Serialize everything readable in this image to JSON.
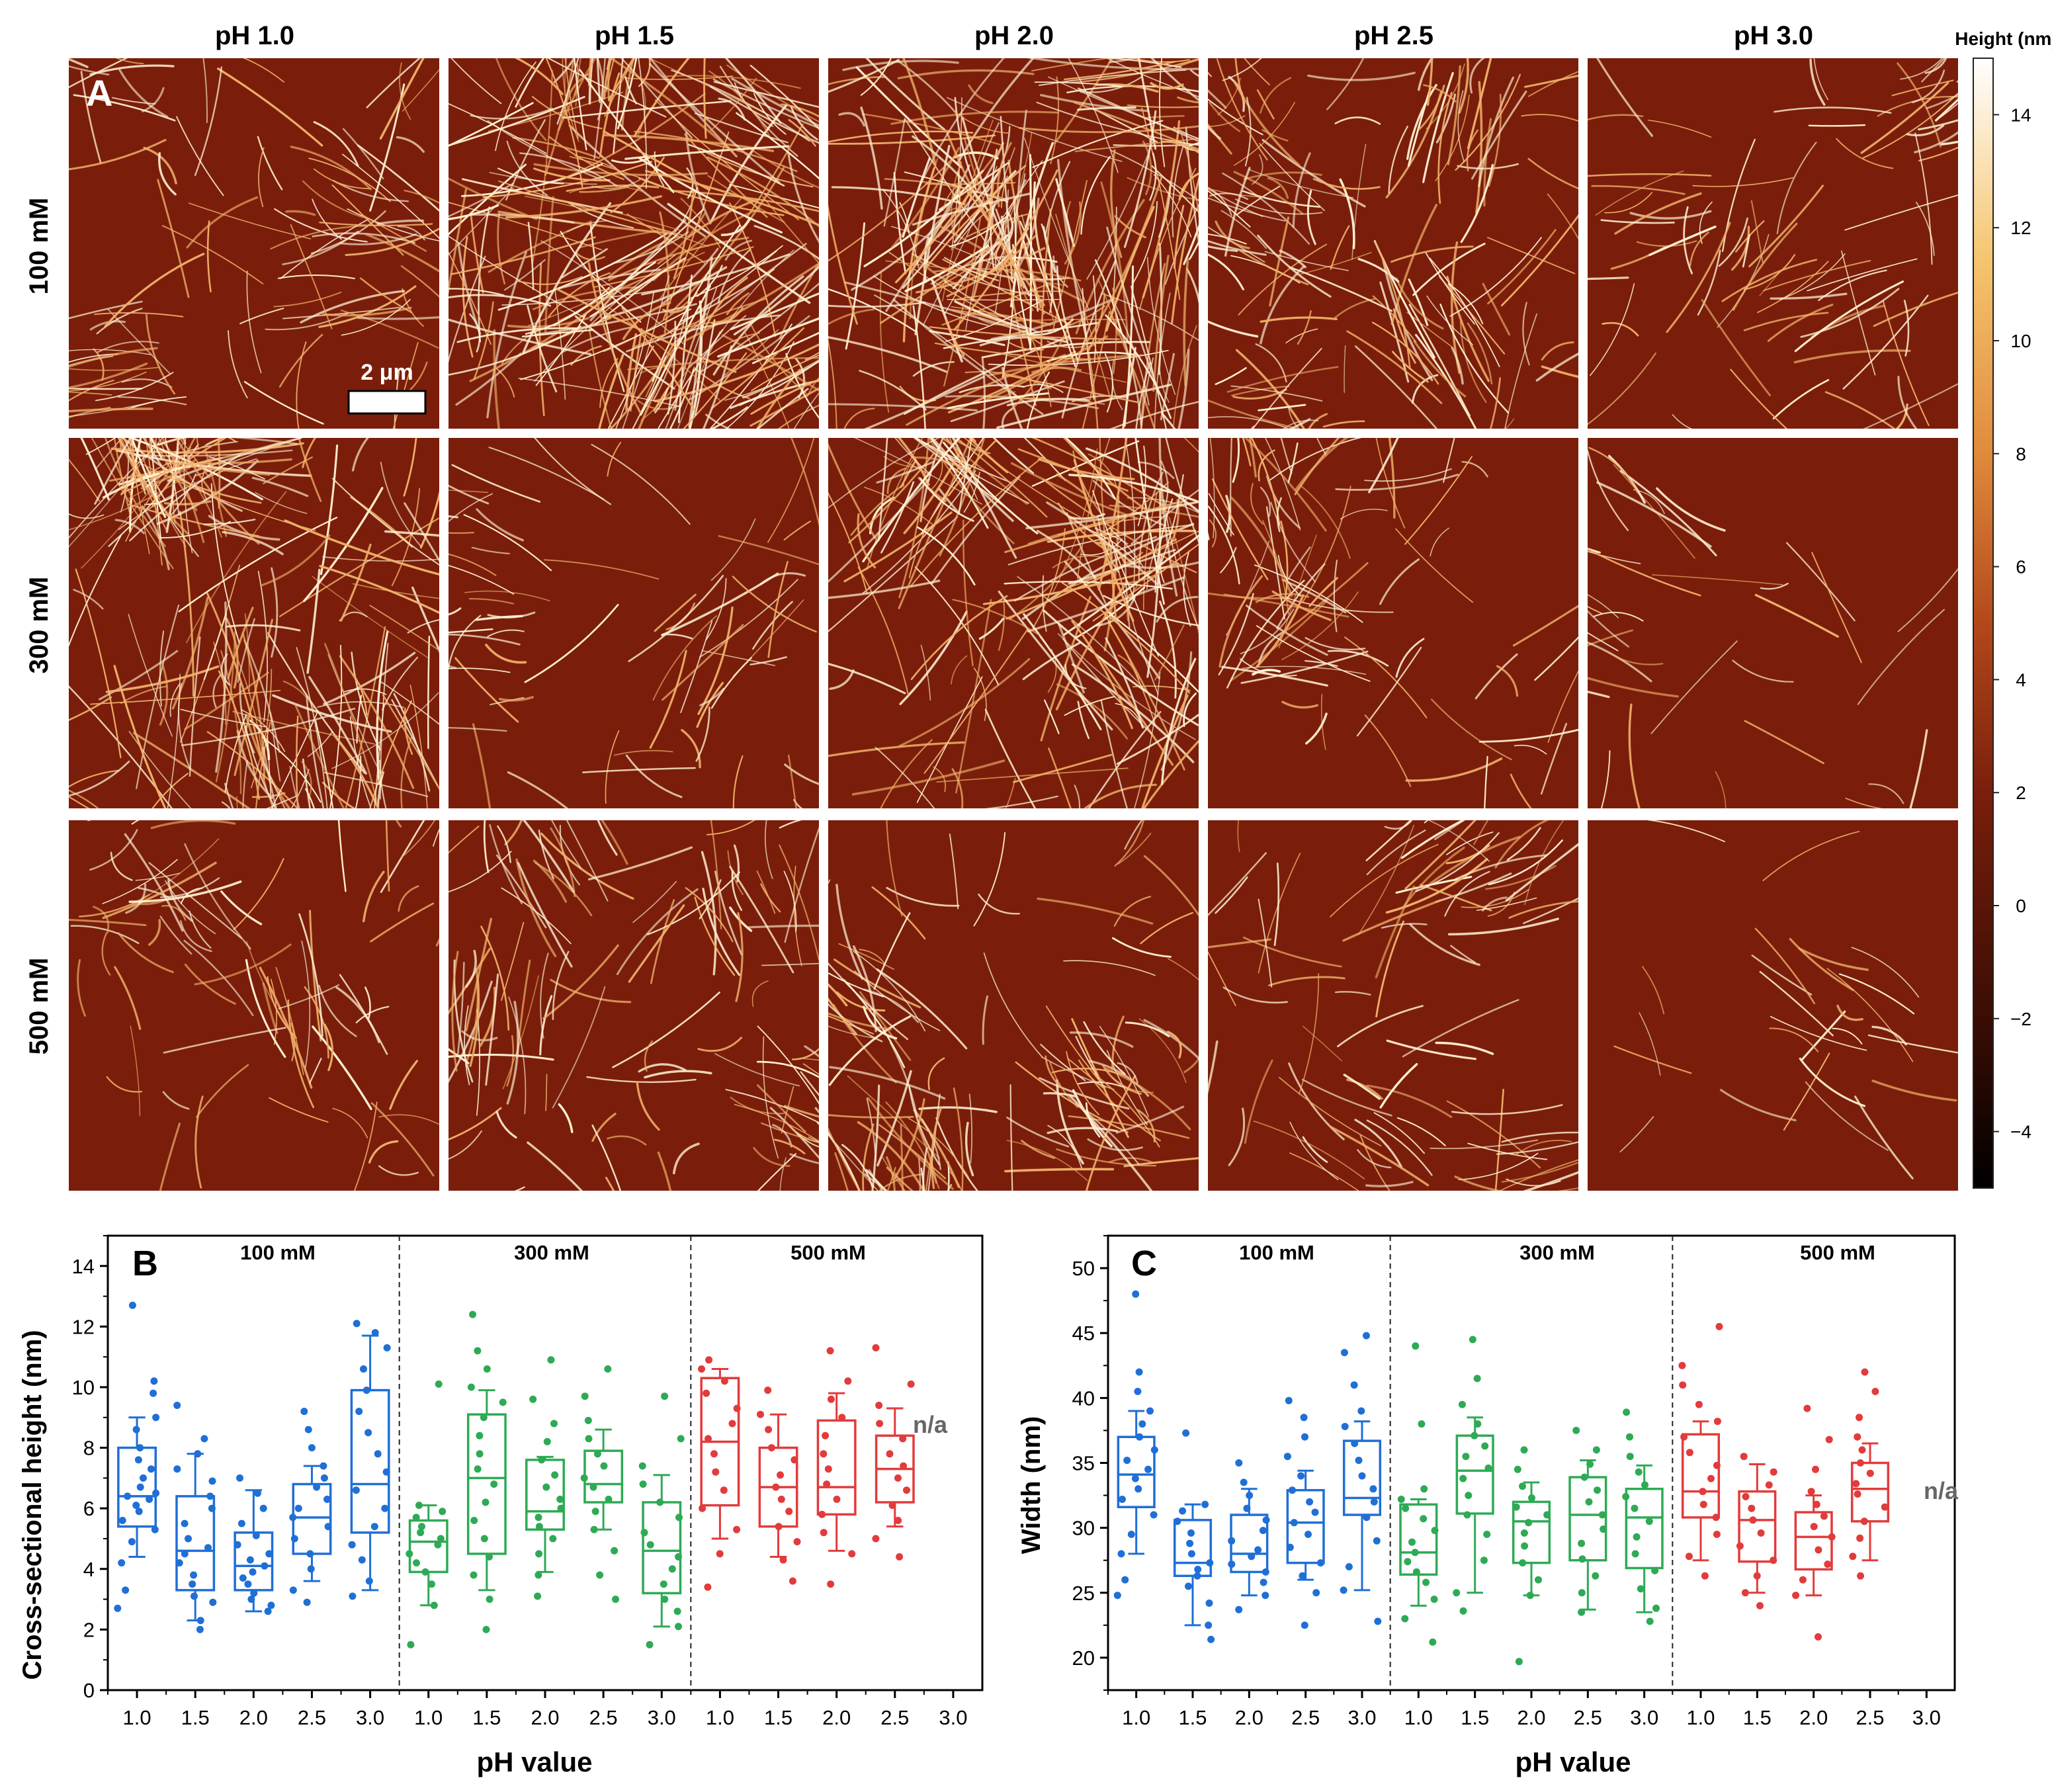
{
  "panel_a": {
    "label": "A",
    "columns": [
      "pH 1.0",
      "pH 1.5",
      "pH 2.0",
      "pH 2.5",
      "pH 3.0"
    ],
    "rows": [
      "100 mM",
      "300 mM",
      "500 mM"
    ],
    "scale_bar": "2 μm",
    "colorbar": {
      "title": "Height (nm)",
      "ticks": [
        "14",
        "12",
        "10",
        "8",
        "6",
        "4",
        "2",
        "0",
        "−2",
        "−4"
      ],
      "tick_values": [
        14,
        12,
        10,
        8,
        6,
        4,
        2,
        0,
        -2,
        -4
      ],
      "range": [
        -5,
        15
      ]
    },
    "fibril_density": [
      [
        0.35,
        1.0,
        1.0,
        0.55,
        0.25
      ],
      [
        0.8,
        0.2,
        0.7,
        0.3,
        0.1
      ],
      [
        0.25,
        0.4,
        0.45,
        0.3,
        0.05
      ]
    ],
    "colors": {
      "background": "#7a1e0b",
      "fibril": "#fff1d2",
      "fibril_mid": "#f0b06a"
    }
  },
  "chart_data": [
    {
      "type": "box",
      "panel": "B",
      "title": "",
      "xlabel": "pH value",
      "ylabel": "Cross-sectional height (nm)",
      "ylim": [
        0,
        15
      ],
      "yticks": [
        "0",
        "2",
        "4",
        "6",
        "8",
        "10",
        "12",
        "14"
      ],
      "categories": [
        "1.0",
        "1.5",
        "2.0",
        "2.5",
        "3.0"
      ],
      "groups": [
        "100 mM",
        "300 mM",
        "500 mM"
      ],
      "series": [
        {
          "name": "100 mM",
          "color": "#1f6fd6",
          "boxes": [
            {
              "q1": 5.4,
              "median": 6.4,
              "q3": 8.0,
              "whisker_low": 4.4,
              "whisker_high": 9.0,
              "points": [
                2.7,
                3.3,
                4.2,
                4.9,
                5.3,
                5.6,
                5.9,
                6.1,
                6.3,
                6.4,
                6.5,
                6.7,
                7.0,
                7.3,
                7.6,
                8.0,
                8.6,
                9.0,
                9.8,
                10.2,
                12.7
              ]
            },
            {
              "q1": 3.3,
              "median": 4.6,
              "q3": 6.4,
              "whisker_low": 2.3,
              "whisker_high": 7.8,
              "points": [
                2.0,
                2.3,
                2.9,
                3.1,
                3.5,
                3.8,
                4.2,
                4.5,
                4.7,
                5.0,
                5.5,
                6.0,
                6.4,
                6.9,
                7.3,
                7.8,
                8.3,
                9.4
              ]
            },
            {
              "q1": 3.3,
              "median": 4.1,
              "q3": 5.2,
              "whisker_low": 2.6,
              "whisker_high": 6.6,
              "points": [
                2.6,
                2.8,
                3.0,
                3.2,
                3.5,
                3.7,
                3.9,
                4.1,
                4.3,
                4.5,
                4.8,
                5.1,
                5.5,
                6.0,
                6.5,
                7.0
              ]
            },
            {
              "q1": 4.5,
              "median": 5.7,
              "q3": 6.8,
              "whisker_low": 3.6,
              "whisker_high": 7.4,
              "points": [
                2.9,
                3.3,
                4.0,
                4.5,
                5.0,
                5.4,
                5.7,
                6.0,
                6.3,
                6.7,
                7.0,
                7.4,
                8.0,
                8.6,
                9.2
              ]
            },
            {
              "q1": 5.2,
              "median": 6.8,
              "q3": 9.9,
              "whisker_low": 3.3,
              "whisker_high": 11.7,
              "points": [
                3.1,
                3.6,
                4.3,
                4.8,
                5.4,
                6.0,
                6.6,
                7.2,
                7.8,
                8.5,
                9.2,
                9.9,
                10.6,
                11.3,
                11.8,
                12.1
              ]
            }
          ]
        },
        {
          "name": "300 mM",
          "color": "#2eaa55",
          "boxes": [
            {
              "q1": 3.9,
              "median": 4.9,
              "q3": 5.6,
              "whisker_low": 2.8,
              "whisker_high": 6.1,
              "points": [
                1.5,
                2.8,
                3.5,
                3.9,
                4.2,
                4.5,
                4.8,
                5.0,
                5.2,
                5.4,
                5.7,
                5.9,
                6.1,
                10.1
              ]
            },
            {
              "q1": 4.5,
              "median": 7.0,
              "q3": 9.1,
              "whisker_low": 3.3,
              "whisker_high": 9.9,
              "points": [
                2.0,
                3.0,
                3.8,
                4.4,
                5.0,
                5.6,
                6.2,
                6.8,
                7.3,
                7.8,
                8.4,
                9.0,
                9.5,
                10.0,
                10.6,
                11.2,
                12.4
              ]
            },
            {
              "q1": 5.3,
              "median": 5.9,
              "q3": 7.6,
              "whisker_low": 3.9,
              "whisker_high": 7.7,
              "points": [
                3.1,
                3.8,
                4.5,
                5.0,
                5.4,
                5.7,
                6.0,
                6.3,
                6.7,
                7.1,
                7.6,
                8.2,
                8.8,
                9.6,
                10.9
              ]
            },
            {
              "q1": 6.2,
              "median": 6.8,
              "q3": 7.9,
              "whisker_low": 5.3,
              "whisker_high": 8.6,
              "points": [
                3.0,
                3.8,
                4.6,
                5.3,
                5.9,
                6.3,
                6.7,
                7.0,
                7.4,
                7.8,
                8.3,
                8.9,
                9.7,
                10.6
              ]
            },
            {
              "q1": 3.2,
              "median": 4.6,
              "q3": 6.2,
              "whisker_low": 2.1,
              "whisker_high": 7.1,
              "points": [
                1.5,
                2.1,
                2.6,
                3.0,
                3.5,
                4.0,
                4.4,
                4.8,
                5.2,
                5.7,
                6.2,
                6.8,
                7.4,
                8.3,
                9.7
              ]
            }
          ]
        },
        {
          "name": "500 mM",
          "color": "#e23b3b",
          "boxes": [
            {
              "q1": 6.1,
              "median": 8.2,
              "q3": 10.3,
              "whisker_low": 5.0,
              "whisker_high": 10.6,
              "points": [
                3.4,
                4.5,
                5.3,
                6.0,
                6.6,
                7.2,
                7.8,
                8.3,
                8.8,
                9.3,
                9.8,
                10.2,
                10.6,
                10.9
              ]
            },
            {
              "q1": 5.4,
              "median": 6.7,
              "q3": 8.0,
              "whisker_low": 4.4,
              "whisker_high": 9.1,
              "points": [
                3.6,
                4.3,
                4.9,
                5.4,
                5.9,
                6.3,
                6.7,
                7.1,
                7.6,
                8.0,
                8.6,
                9.1,
                9.9
              ]
            },
            {
              "q1": 5.8,
              "median": 6.7,
              "q3": 8.9,
              "whisker_low": 4.6,
              "whisker_high": 9.8,
              "points": [
                3.5,
                4.5,
                5.2,
                5.8,
                6.3,
                6.8,
                7.3,
                7.8,
                8.4,
                9.0,
                9.6,
                10.2,
                11.2
              ]
            },
            {
              "q1": 6.2,
              "median": 7.3,
              "q3": 8.4,
              "whisker_low": 5.4,
              "whisker_high": 9.3,
              "points": [
                4.4,
                5.0,
                5.6,
                6.1,
                6.6,
                7.0,
                7.4,
                7.8,
                8.3,
                8.8,
                9.4,
                10.1,
                11.3
              ]
            },
            null
          ]
        }
      ],
      "na_label": "n/a"
    },
    {
      "type": "box",
      "panel": "C",
      "title": "",
      "xlabel": "pH value",
      "ylabel": "Width (nm)",
      "ylim": [
        17.5,
        52.5
      ],
      "yticks": [
        "20",
        "25",
        "30",
        "35",
        "40",
        "45",
        "50"
      ],
      "categories": [
        "1.0",
        "1.5",
        "2.0",
        "2.5",
        "3.0"
      ],
      "groups": [
        "100 mM",
        "300 mM",
        "500 mM"
      ],
      "series": [
        {
          "name": "100 mM",
          "color": "#1f6fd6",
          "boxes": [
            {
              "q1": 31.6,
              "median": 34.1,
              "q3": 37.0,
              "whisker_low": 28.0,
              "whisker_high": 39.0,
              "points": [
                24.8,
                26.0,
                28.0,
                29.5,
                31.0,
                32.2,
                33.0,
                33.8,
                34.5,
                35.2,
                36.0,
                37.0,
                38.0,
                39.0,
                40.5,
                42.0,
                48.0
              ]
            },
            {
              "q1": 26.3,
              "median": 27.3,
              "q3": 30.6,
              "whisker_low": 22.5,
              "whisker_high": 31.8,
              "points": [
                21.4,
                22.5,
                24.2,
                25.5,
                26.3,
                26.8,
                27.3,
                28.0,
                28.8,
                29.6,
                30.5,
                31.3,
                31.8,
                37.3
              ]
            },
            {
              "q1": 26.6,
              "median": 28.0,
              "q3": 31.0,
              "whisker_low": 24.8,
              "whisker_high": 33.0,
              "points": [
                23.7,
                24.8,
                25.8,
                26.6,
                27.2,
                27.8,
                28.3,
                29.0,
                29.8,
                30.6,
                31.5,
                32.5,
                33.5,
                35.0
              ]
            },
            {
              "q1": 27.3,
              "median": 30.4,
              "q3": 32.9,
              "whisker_low": 26.0,
              "whisker_high": 34.4,
              "points": [
                22.5,
                25.0,
                26.3,
                27.3,
                28.5,
                29.5,
                30.4,
                31.2,
                32.0,
                32.9,
                34.0,
                35.5,
                37.0,
                38.5,
                39.8
              ]
            },
            {
              "q1": 31.0,
              "median": 32.3,
              "q3": 36.7,
              "whisker_low": 25.2,
              "whisker_high": 38.2,
              "points": [
                22.8,
                25.2,
                27.0,
                29.0,
                30.8,
                32.0,
                33.0,
                34.0,
                35.2,
                36.5,
                37.8,
                39.0,
                41.0,
                43.5,
                44.8
              ]
            }
          ]
        },
        {
          "name": "300 mM",
          "color": "#2eaa55",
          "boxes": [
            {
              "q1": 26.4,
              "median": 28.1,
              "q3": 31.8,
              "whisker_low": 24.0,
              "whisker_high": 32.2,
              "points": [
                21.2,
                23.0,
                24.5,
                25.8,
                26.6,
                27.4,
                28.1,
                28.9,
                29.8,
                30.7,
                31.5,
                32.2,
                33.0,
                38.0,
                44.0
              ]
            },
            {
              "q1": 31.1,
              "median": 34.4,
              "q3": 37.1,
              "whisker_low": 25.0,
              "whisker_high": 38.5,
              "points": [
                23.6,
                25.0,
                27.5,
                29.5,
                31.0,
                32.5,
                33.8,
                34.6,
                35.5,
                36.3,
                37.1,
                38.0,
                39.5,
                41.5,
                44.5
              ]
            },
            {
              "q1": 27.3,
              "median": 30.5,
              "q3": 32.0,
              "whisker_low": 24.8,
              "whisker_high": 33.5,
              "points": [
                19.7,
                24.8,
                26.0,
                27.3,
                28.6,
                29.6,
                30.4,
                31.0,
                31.6,
                32.3,
                33.2,
                34.5,
                36.0
              ]
            },
            {
              "q1": 27.5,
              "median": 31.0,
              "q3": 33.9,
              "whisker_low": 23.7,
              "whisker_high": 35.2,
              "points": [
                23.5,
                25.0,
                26.3,
                27.6,
                28.8,
                29.9,
                31.0,
                32.0,
                32.9,
                33.9,
                34.9,
                36.0,
                37.5
              ]
            },
            {
              "q1": 26.9,
              "median": 30.8,
              "q3": 33.0,
              "whisker_low": 23.5,
              "whisker_high": 34.8,
              "points": [
                22.8,
                23.8,
                25.3,
                26.7,
                28.0,
                29.3,
                30.5,
                31.5,
                32.4,
                33.3,
                34.3,
                35.5,
                37.0,
                38.9
              ]
            }
          ]
        },
        {
          "name": "500 mM",
          "color": "#e23b3b",
          "boxes": [
            {
              "q1": 30.8,
              "median": 32.8,
              "q3": 37.2,
              "whisker_low": 27.5,
              "whisker_high": 38.2,
              "points": [
                26.3,
                27.8,
                29.5,
                30.8,
                31.8,
                32.8,
                33.8,
                34.8,
                35.8,
                37.0,
                38.2,
                39.5,
                41.0,
                42.5,
                45.5
              ]
            },
            {
              "q1": 27.4,
              "median": 30.6,
              "q3": 32.8,
              "whisker_low": 25.0,
              "whisker_high": 34.9,
              "points": [
                24.0,
                25.0,
                26.3,
                27.5,
                28.6,
                29.6,
                30.6,
                31.5,
                32.4,
                33.3,
                34.3,
                35.5
              ]
            },
            {
              "q1": 26.8,
              "median": 29.3,
              "q3": 31.2,
              "whisker_low": 24.8,
              "whisker_high": 32.5,
              "points": [
                21.6,
                24.8,
                26.0,
                27.2,
                28.3,
                29.3,
                30.1,
                30.9,
                31.8,
                32.8,
                34.5,
                36.8,
                39.2
              ]
            },
            {
              "q1": 30.5,
              "median": 33.0,
              "q3": 35.0,
              "whisker_low": 27.5,
              "whisker_high": 36.5,
              "points": [
                26.3,
                27.8,
                29.2,
                30.5,
                31.6,
                32.6,
                33.4,
                34.2,
                35.0,
                36.0,
                37.0,
                38.5,
                40.5,
                42.0
              ]
            },
            null
          ]
        }
      ],
      "na_label": "n/a"
    }
  ]
}
